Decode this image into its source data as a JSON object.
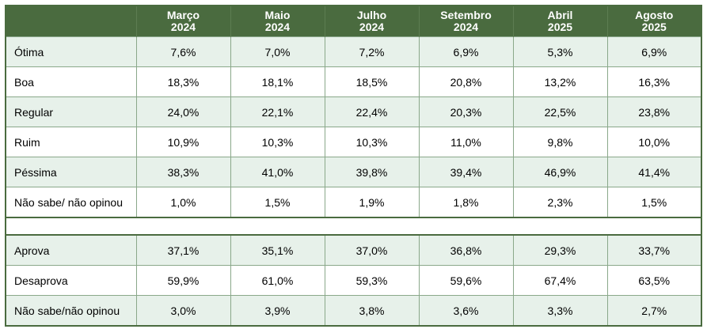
{
  "table": {
    "columns": [
      {
        "month": "Março",
        "year": "2024"
      },
      {
        "month": "Maio",
        "year": "2024"
      },
      {
        "month": "Julho",
        "year": "2024"
      },
      {
        "month": "Setembro",
        "year": "2024"
      },
      {
        "month": "Abril",
        "year": "2025"
      },
      {
        "month": "Agosto",
        "year": "2025"
      }
    ],
    "rating_rows": [
      {
        "label": "Ótima",
        "values": [
          "7,6%",
          "7,0%",
          "7,2%",
          "6,9%",
          "5,3%",
          "6,9%"
        ]
      },
      {
        "label": "Boa",
        "values": [
          "18,3%",
          "18,1%",
          "18,5%",
          "20,8%",
          "13,2%",
          "16,3%"
        ]
      },
      {
        "label": "Regular",
        "values": [
          "24,0%",
          "22,1%",
          "22,4%",
          "20,3%",
          "22,5%",
          "23,8%"
        ]
      },
      {
        "label": "Ruim",
        "values": [
          "10,9%",
          "10,3%",
          "10,3%",
          "11,0%",
          "9,8%",
          "10,0%"
        ]
      },
      {
        "label": "Péssima",
        "values": [
          "38,3%",
          "41,0%",
          "39,8%",
          "39,4%",
          "46,9%",
          "41,4%"
        ]
      },
      {
        "label": "Não sabe/ não opinou",
        "values": [
          "1,0%",
          "1,5%",
          "1,9%",
          "1,8%",
          "2,3%",
          "1,5%"
        ]
      }
    ],
    "approval_rows": [
      {
        "label": "Aprova",
        "values": [
          "37,1%",
          "35,1%",
          "37,0%",
          "36,8%",
          "29,3%",
          "33,7%"
        ]
      },
      {
        "label": "Desaprova",
        "values": [
          "59,9%",
          "61,0%",
          "59,3%",
          "59,6%",
          "67,4%",
          "63,5%"
        ]
      },
      {
        "label": "Não sabe/não opinou",
        "values": [
          "3,0%",
          "3,9%",
          "3,8%",
          "3,6%",
          "3,3%",
          "2,7%"
        ]
      }
    ]
  },
  "colors": {
    "header_bg": "#4a6b3f",
    "header_text": "#ffffff",
    "row_alt_bg": "#e7f1ea",
    "row_plain_bg": "#ffffff",
    "border": "#8aa88a"
  }
}
